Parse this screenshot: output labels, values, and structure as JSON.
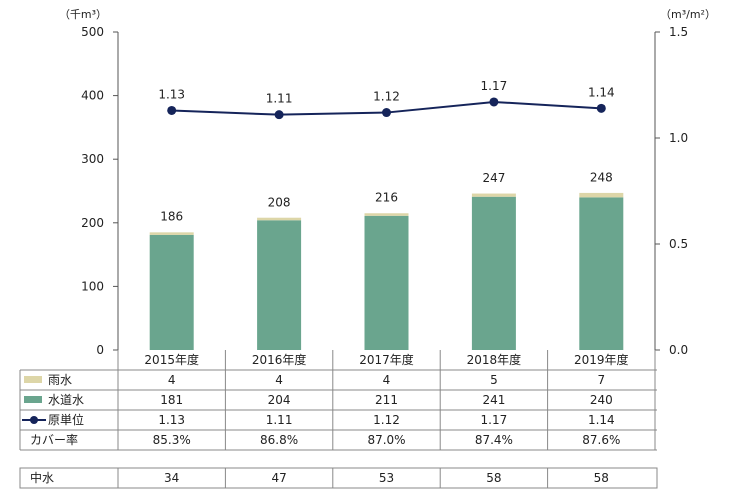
{
  "colors": {
    "rain": "#ddd6a8",
    "water": "#6aa58e",
    "line": "#15245a",
    "axis": "#555555",
    "grid_border": "#888888"
  },
  "units": {
    "left": "（千m³）",
    "right": "（m³/m²）"
  },
  "chart_data": {
    "type": "bar",
    "stacked": true,
    "categories": [
      "2015年度",
      "2016年度",
      "2017年度",
      "2018年度",
      "2019年度"
    ],
    "series": [
      {
        "name": "雨水",
        "values": [
          4,
          4,
          4,
          5,
          7
        ],
        "axis": "left"
      },
      {
        "name": "水道水",
        "values": [
          181,
          204,
          211,
          241,
          240
        ],
        "axis": "left"
      },
      {
        "name": "原単位",
        "type": "line",
        "values": [
          1.13,
          1.11,
          1.12,
          1.17,
          1.14
        ],
        "axis": "right"
      }
    ],
    "totals": [
      186,
      208,
      216,
      247,
      248
    ],
    "left_ticks": [
      "500",
      "400",
      "300",
      "200",
      "100",
      "0"
    ],
    "right_ticks": [
      "1.5",
      "1.0",
      "0.5",
      "0.0"
    ],
    "ylim": [
      0,
      500
    ],
    "y2lim": [
      0,
      1.5
    ],
    "line_labels": [
      "1.13",
      "1.11",
      "1.12",
      "1.17",
      "1.14"
    ],
    "total_labels": [
      "186",
      "208",
      "216",
      "247",
      "248"
    ]
  },
  "table": {
    "rows": [
      {
        "label": "雨水",
        "key": "rain",
        "values": [
          "4",
          "4",
          "4",
          "5",
          "7"
        ]
      },
      {
        "label": "水道水",
        "key": "water",
        "values": [
          "181",
          "204",
          "211",
          "241",
          "240"
        ]
      },
      {
        "label": "原単位",
        "key": "unit",
        "values": [
          "1.13",
          "1.11",
          "1.12",
          "1.17",
          "1.14"
        ]
      },
      {
        "label": "カバー率",
        "key": "cover",
        "values": [
          "85.3%",
          "86.8%",
          "87.0%",
          "87.4%",
          "87.6%"
        ]
      }
    ],
    "extra_row": {
      "label": "中水",
      "values": [
        "34",
        "47",
        "53",
        "58",
        "58"
      ]
    }
  }
}
